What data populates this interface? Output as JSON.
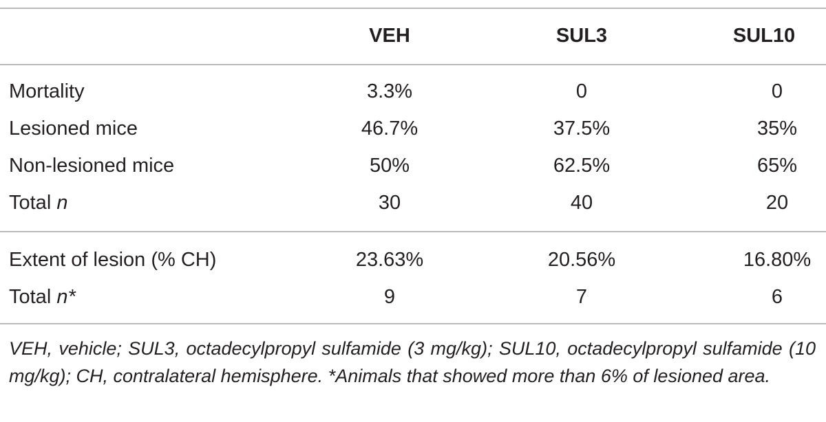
{
  "table": {
    "columns": [
      "",
      "VEH",
      "SUL3",
      "SUL10"
    ],
    "rows": [
      {
        "label": "Mortality",
        "label_suffix": "",
        "values": [
          "3.3%",
          "0",
          "0"
        ]
      },
      {
        "label": "Lesioned mice",
        "label_suffix": "",
        "values": [
          "46.7%",
          "37.5%",
          "35%"
        ]
      },
      {
        "label": "Non-lesioned mice",
        "label_suffix": "",
        "values": [
          "50%",
          "62.5%",
          "65%"
        ]
      },
      {
        "label": "Total ",
        "label_suffix": "n",
        "values": [
          "30",
          "40",
          "20"
        ]
      },
      {
        "label": "Extent of lesion (% CH)",
        "label_suffix": "",
        "values": [
          "23.63%",
          "20.56%",
          "16.80%"
        ]
      },
      {
        "label": "Total ",
        "label_suffix": "n*",
        "values": [
          "9",
          "7",
          "6"
        ]
      }
    ],
    "footnote": "VEH, vehicle; SUL3, octadecylpropyl sulfamide (3 mg/kg); SUL10, octadecylpropyl sulfamide (10 mg/kg); CH, contralateral hemisphere. *Animals that showed more than 6% of lesioned area."
  }
}
